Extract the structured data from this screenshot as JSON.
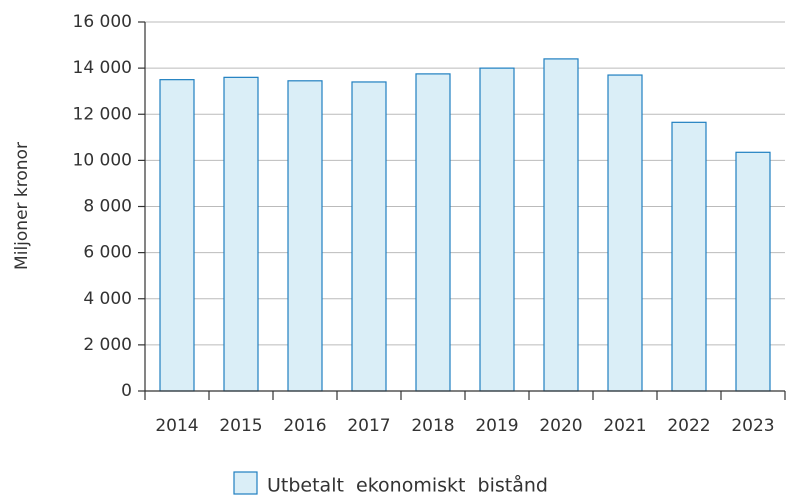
{
  "chart_data": {
    "type": "bar",
    "y_label": "Miljoner kronor",
    "categories": [
      "2014",
      "2015",
      "2016",
      "2017",
      "2018",
      "2019",
      "2020",
      "2021",
      "2022",
      "2023"
    ],
    "series": [
      {
        "name": "Utbetalt  ekonomiskt  bistånd",
        "color": "#daeef7",
        "edge_color": "#1f7fc0",
        "values": [
          13500,
          13600,
          13450,
          13400,
          13750,
          14000,
          14400,
          13700,
          11650,
          10350
        ]
      }
    ],
    "ylim": [
      0,
      16000
    ],
    "yticks": [
      0,
      {
        "value": 2000,
        "label": "2 000"
      },
      {
        "value": 4000,
        "label": "4 000"
      },
      {
        "value": 6000,
        "label": "6 000"
      },
      {
        "value": 8000,
        "label": "8 000"
      },
      {
        "value": 10000,
        "label": "10 000"
      },
      {
        "value": 12000,
        "label": "12 000"
      },
      {
        "value": 14000,
        "label": "14 000"
      },
      {
        "value": 16000,
        "label": "16 000"
      }
    ],
    "grid": true,
    "legend": "bottom"
  }
}
